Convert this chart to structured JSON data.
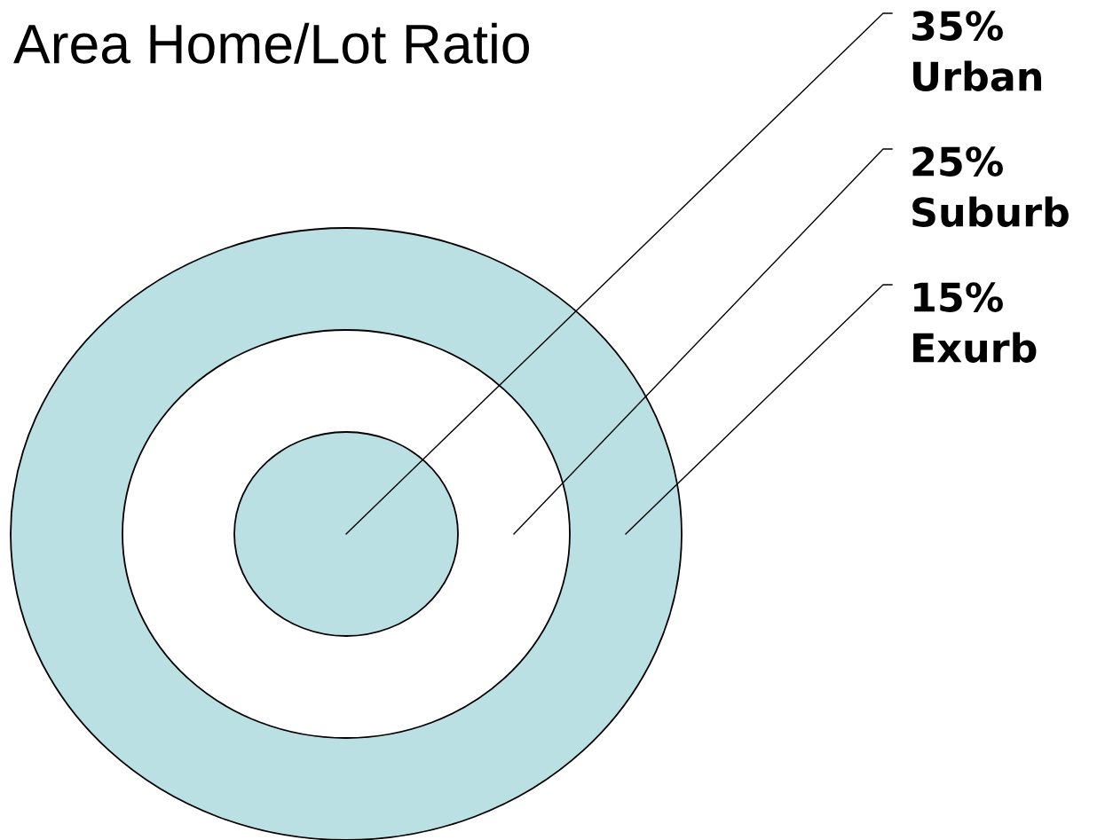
{
  "chart_data": {
    "type": "other",
    "title": "Area Home/Lot Ratio",
    "categories": [
      "Urban",
      "Suburb",
      "Exurb"
    ],
    "values": [
      35,
      25,
      15
    ],
    "value_labels": [
      "35%",
      "25%",
      "15%"
    ],
    "colors": [
      "#bbe0e3",
      "#ffffff",
      "#bbe0e3"
    ]
  }
}
